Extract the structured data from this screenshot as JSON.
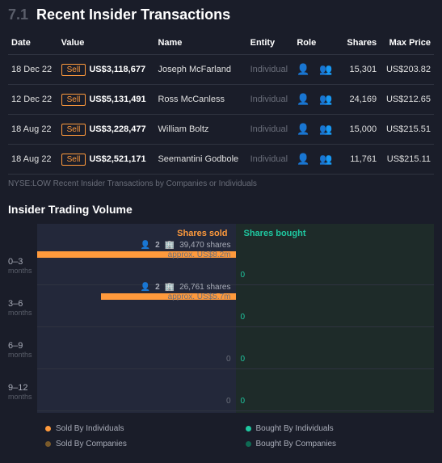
{
  "section": {
    "num": "7.1",
    "title": "Recent Insider Transactions"
  },
  "table": {
    "headers": {
      "date": "Date",
      "value": "Value",
      "name": "Name",
      "entity": "Entity",
      "role": "Role",
      "shares": "Shares",
      "maxprice": "Max Price"
    },
    "rows": [
      {
        "date": "18 Dec 22",
        "badge": "Sell",
        "value": "US$3,118,677",
        "name": "Joseph McFarland",
        "entity": "Individual",
        "shares": "15,301",
        "maxprice": "US$203.82"
      },
      {
        "date": "12 Dec 22",
        "badge": "Sell",
        "value": "US$5,131,491",
        "name": "Ross McCanless",
        "entity": "Individual",
        "shares": "24,169",
        "maxprice": "US$212.65"
      },
      {
        "date": "18 Aug 22",
        "badge": "Sell",
        "value": "US$3,228,477",
        "name": "William Boltz",
        "entity": "Individual",
        "shares": "15,000",
        "maxprice": "US$215.51"
      },
      {
        "date": "18 Aug 22",
        "badge": "Sell",
        "value": "US$2,521,171",
        "name": "Seemantini Godbole",
        "entity": "Individual",
        "shares": "11,761",
        "maxprice": "US$215.11"
      }
    ]
  },
  "footnote": "NYSE:LOW Recent Insider Transactions by Companies or Individuals",
  "volume": {
    "title": "Insider Trading Volume",
    "headers": {
      "sold": "Shares sold",
      "bought": "Shares bought"
    },
    "periods": [
      {
        "label": "0–3",
        "sub": "months",
        "bar_pct": 100,
        "ppl": "2",
        "shares": "39,470 shares",
        "approx": "approx. US$8.2m",
        "bought": "0"
      },
      {
        "label": "3–6",
        "sub": "months",
        "bar_pct": 68,
        "ppl": "2",
        "shares": "26,761 shares",
        "approx": "approx. US$5.7m",
        "bought": "0"
      },
      {
        "label": "6–9",
        "sub": "months",
        "bar_pct": 0,
        "sold_zero": "0",
        "bought": "0"
      },
      {
        "label": "9–12",
        "sub": "months",
        "bar_pct": 0,
        "sold_zero": "0",
        "bought": "0"
      }
    ]
  },
  "legend": {
    "a": "Sold By Individuals",
    "b": "Bought By Individuals",
    "c": "Sold By Companies",
    "d": "Bought By Companies"
  },
  "colors": {
    "sold_ind": "#ff9a3c",
    "bought_ind": "#1fc7a0",
    "sold_co": "#7a5a2a",
    "bought_co": "#0f6b54"
  }
}
